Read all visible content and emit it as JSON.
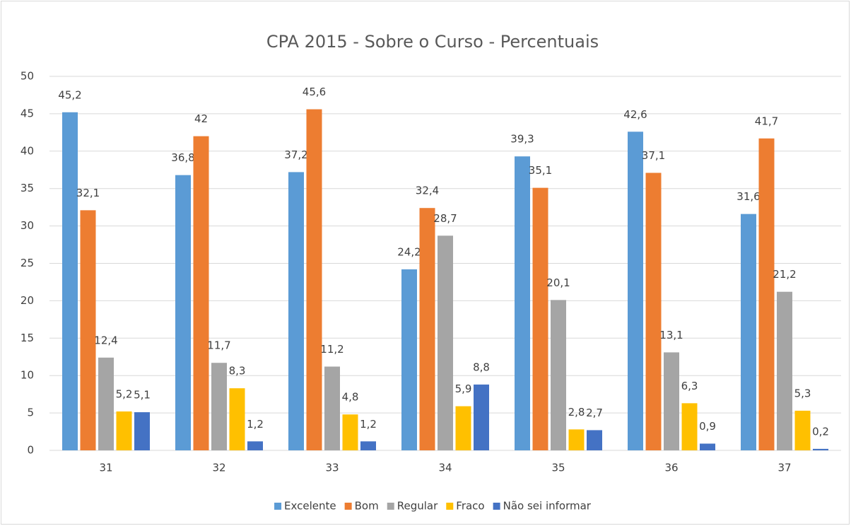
{
  "chart_data": {
    "type": "bar",
    "title": "CPA 2015 - Sobre o Curso - Percentuais",
    "categories": [
      "31",
      "32",
      "33",
      "34",
      "35",
      "36",
      "37"
    ],
    "series": [
      {
        "name": "Excelente",
        "color": "#5b9bd5",
        "values": [
          45.2,
          36.8,
          37.2,
          24.2,
          39.3,
          42.6,
          31.6
        ],
        "value_labels": [
          "45,2",
          "36,8",
          "37,2",
          "24,2",
          "39,3",
          "42,6",
          "31,6"
        ]
      },
      {
        "name": "Bom",
        "color": "#ed7d31",
        "values": [
          32.1,
          42,
          45.6,
          32.4,
          35.1,
          37.1,
          41.7
        ],
        "value_labels": [
          "32,1",
          "42",
          "45,6",
          "32,4",
          "35,1",
          "37,1",
          "41,7"
        ]
      },
      {
        "name": "Regular",
        "color": "#a5a5a5",
        "values": [
          12.4,
          11.7,
          11.2,
          28.7,
          20.1,
          13.1,
          21.2
        ],
        "value_labels": [
          "12,4",
          "11,7",
          "11,2",
          "28,7",
          "20,1",
          "13,1",
          "21,2"
        ]
      },
      {
        "name": "Fraco",
        "color": "#ffc000",
        "values": [
          5.2,
          8.3,
          4.8,
          5.9,
          2.8,
          6.3,
          5.3
        ],
        "value_labels": [
          "5,2",
          "8,3",
          "4,8",
          "5,9",
          "2,8",
          "6,3",
          "5,3"
        ]
      },
      {
        "name": "Não sei informar",
        "color": "#4472c4",
        "values": [
          5.1,
          1.2,
          1.2,
          8.8,
          2.7,
          0.9,
          0.2
        ],
        "value_labels": [
          "5,1",
          "1,2",
          "1,2",
          "8,8",
          "2,7",
          "0,9",
          "0,2"
        ]
      }
    ],
    "ylim": [
      0,
      50
    ],
    "yticks": [
      0,
      5,
      10,
      15,
      20,
      25,
      30,
      35,
      40,
      45,
      50
    ],
    "grid": true,
    "legend": "bottom"
  }
}
